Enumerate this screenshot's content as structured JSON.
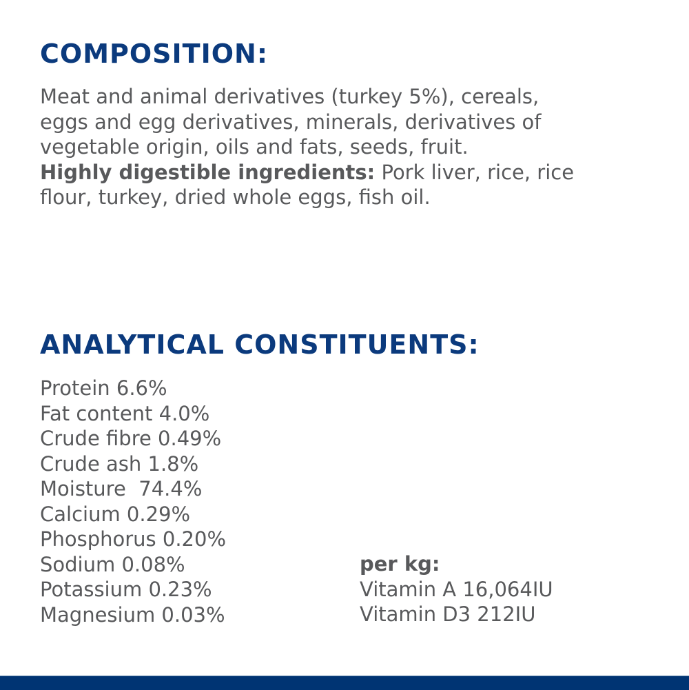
{
  "composition": {
    "heading": "COMPOSITION:",
    "lines": [
      "Meat and animal derivatives (turkey 5%), cereals,",
      "eggs and egg derivatives, minerals, derivatives of",
      "vegetable origin, oils and fats, seeds, fruit."
    ],
    "highlight_label": "Highly digestible ingredients:",
    "highlight_line1_rest": " Pork liver, rice, rice",
    "highlight_line2": "flour, turkey, dried whole eggs, fish oil."
  },
  "analytical": {
    "heading": "ANALYTICAL CONSTITUENTS:",
    "items": [
      "Protein 6.6%",
      "Fat content 4.0%",
      "Crude fibre 0.49%",
      "Crude ash 1.8%",
      "Moisture  74.4%",
      "Calcium 0.29%",
      "Phosphorus 0.20%",
      "Sodium 0.08%",
      "Potassium 0.23%",
      "Magnesium 0.03%"
    ],
    "per_kg_label": "per kg:",
    "per_kg_items": [
      "Vitamin A 16,064IU",
      "Vitamin D3 212IU"
    ]
  },
  "colors": {
    "heading": "#0b3a7d",
    "text": "#58595b",
    "footer_bar": "#003473"
  }
}
